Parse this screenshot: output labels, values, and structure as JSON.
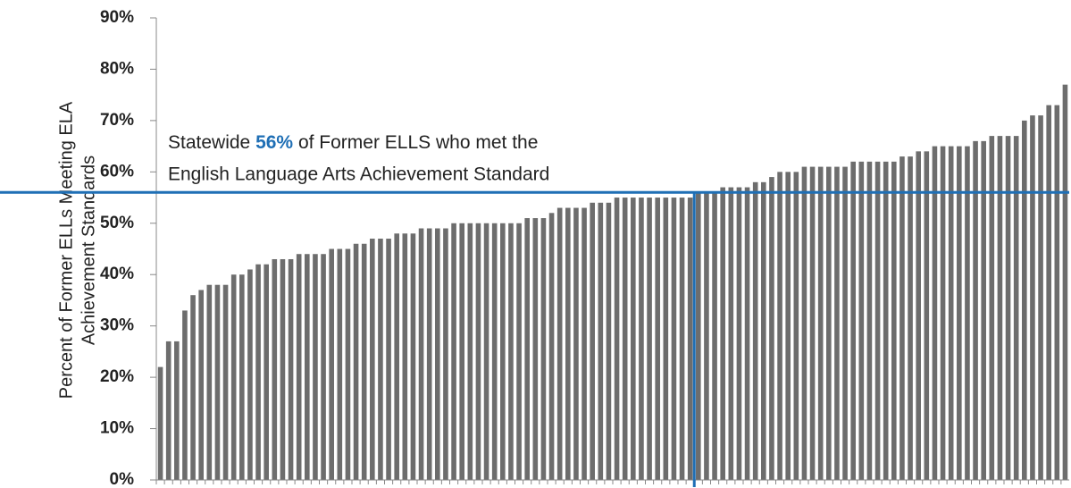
{
  "chart_data": {
    "type": "bar",
    "ylabel": [
      "Percent of Former ELLs Meeting ELA",
      "Achievement Standards"
    ],
    "color": "#6d6d6d",
    "values": [
      22,
      27,
      27,
      33,
      36,
      37,
      38,
      38,
      38,
      40,
      40,
      41,
      42,
      42,
      43,
      43,
      43,
      44,
      44,
      44,
      44,
      45,
      45,
      45,
      46,
      46,
      47,
      47,
      47,
      48,
      48,
      48,
      49,
      49,
      49,
      49,
      50,
      50,
      50,
      50,
      50,
      50,
      50,
      50,
      50,
      51,
      51,
      51,
      52,
      53,
      53,
      53,
      53,
      54,
      54,
      54,
      55,
      55,
      55,
      55,
      55,
      55,
      55,
      55,
      55,
      55,
      56,
      56,
      56,
      57,
      57,
      57,
      57,
      58,
      58,
      59,
      60,
      60,
      60,
      61,
      61,
      61,
      61,
      61,
      61,
      62,
      62,
      62,
      62,
      62,
      62,
      63,
      63,
      64,
      64,
      65,
      65,
      65,
      65,
      65,
      66,
      66,
      67,
      67,
      67,
      67,
      70,
      71,
      71,
      73,
      73,
      77
    ],
    "ylim": [
      0,
      90
    ],
    "yticks": [
      {
        "value": 0,
        "label": "0%"
      },
      {
        "value": 10,
        "label": "10%"
      },
      {
        "value": 20,
        "label": "20%"
      },
      {
        "value": 30,
        "label": "30%"
      },
      {
        "value": 40,
        "label": "40%"
      },
      {
        "value": 50,
        "label": "50%"
      },
      {
        "value": 60,
        "label": "60%"
      },
      {
        "value": 70,
        "label": "70%"
      },
      {
        "value": 80,
        "label": "80%"
      },
      {
        "value": 90,
        "label": "90%"
      }
    ],
    "reference_line": {
      "value": 56,
      "label": "56%",
      "color": "#1f6fb5",
      "text_before": "Statewide",
      "text_after": "of Former ELLS who met the",
      "text_line2": "English Language Arts Achievement Standard"
    }
  }
}
